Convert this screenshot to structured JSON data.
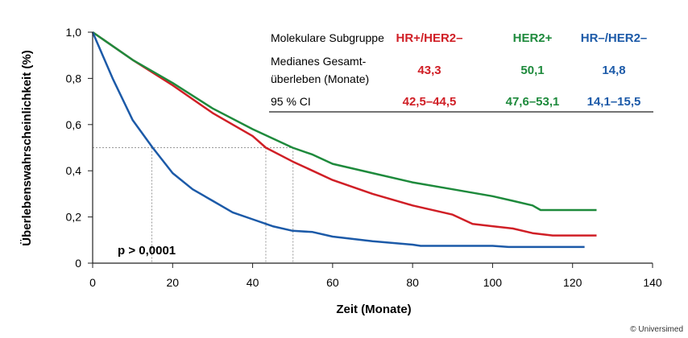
{
  "chart_data": {
    "type": "line",
    "xlabel": "Zeit (Monate)",
    "ylabel": "Überlebenswahrscheinlichkeit (%)",
    "xlim": [
      0,
      140
    ],
    "ylim": [
      0,
      1
    ],
    "xticks": [
      0,
      20,
      40,
      60,
      80,
      100,
      120,
      140
    ],
    "xtick_labels": [
      "0",
      "20",
      "40",
      "60",
      "80",
      "100",
      "120",
      "140"
    ],
    "yticks": [
      0,
      0.2,
      0.4,
      0.6,
      0.8,
      1.0
    ],
    "ytick_labels": [
      "0",
      "0,2",
      "0,4",
      "0,6",
      "0,8",
      "1,0"
    ],
    "annotation": "p > 0,0001",
    "median_reference": {
      "y": 0.5,
      "x": [
        14.8,
        43.3,
        50.1
      ]
    },
    "series": [
      {
        "name": "HR+/HER2–",
        "color": "#d01f26",
        "x": [
          0,
          10,
          20,
          30,
          40,
          43.3,
          50,
          60,
          70,
          80,
          90,
          95,
          100,
          105,
          110,
          115,
          126
        ],
        "y": [
          1,
          0.88,
          0.77,
          0.65,
          0.55,
          0.5,
          0.44,
          0.36,
          0.3,
          0.25,
          0.21,
          0.17,
          0.16,
          0.15,
          0.13,
          0.12,
          0.12
        ]
      },
      {
        "name": "HER2+",
        "color": "#1e8a3c",
        "x": [
          0,
          10,
          20,
          30,
          40,
          50,
          55,
          60,
          70,
          80,
          90,
          100,
          105,
          110,
          112,
          126
        ],
        "y": [
          1,
          0.88,
          0.78,
          0.67,
          0.58,
          0.5,
          0.47,
          0.43,
          0.39,
          0.35,
          0.32,
          0.29,
          0.27,
          0.25,
          0.23,
          0.23
        ]
      },
      {
        "name": "HR–/HER2–",
        "color": "#1c5aa8",
        "x": [
          0,
          5,
          10,
          15,
          20,
          25,
          30,
          35,
          40,
          45,
          50,
          55,
          60,
          70,
          80,
          82,
          100,
          104,
          123
        ],
        "y": [
          1,
          0.8,
          0.62,
          0.5,
          0.39,
          0.32,
          0.27,
          0.22,
          0.19,
          0.16,
          0.14,
          0.135,
          0.115,
          0.095,
          0.08,
          0.075,
          0.075,
          0.07,
          0.07
        ]
      }
    ]
  },
  "table": {
    "row_labels": [
      "Molekulare Subgruppe",
      "Medianes Gesamt-",
      "überleben (Monate)",
      "95 % CI"
    ],
    "groups": [
      {
        "name": "HR+/HER2–",
        "median": "43,3",
        "ci": "42,5–44,5"
      },
      {
        "name": "HER2+",
        "median": "50,1",
        "ci": "47,6–53,1"
      },
      {
        "name": "HR–/HER2–",
        "median": "14,8",
        "ci": "14,1–15,5"
      }
    ]
  },
  "copyright": "© Universimed"
}
